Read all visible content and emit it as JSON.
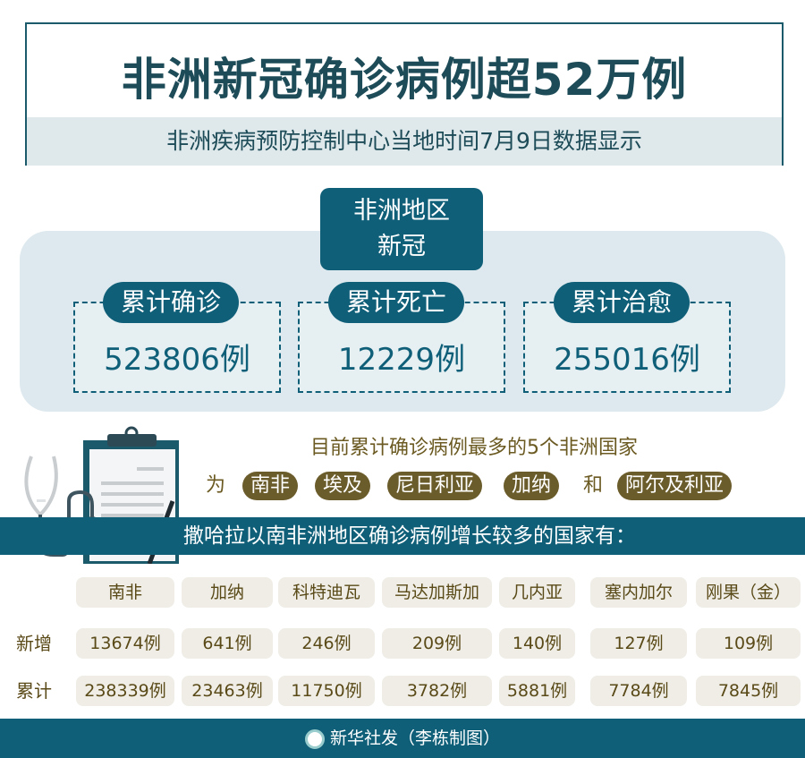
{
  "header": {
    "title": "非洲新冠确诊病例超52万例",
    "subtitle": "非洲疾病预防控制中心当地时间7月9日数据显示"
  },
  "region_box": {
    "line1": "非洲地区",
    "line2": "新冠"
  },
  "stats": [
    {
      "label": "累计确诊",
      "value": "523806例"
    },
    {
      "label": "累计死亡",
      "value": "12229例"
    },
    {
      "label": "累计治愈",
      "value": "255016例"
    }
  ],
  "top5": {
    "intro": "目前累计确诊病例最多的5个非洲国家",
    "prefix": "为",
    "countries": [
      "南非",
      "埃及",
      "尼日利亚",
      "加纳",
      "阿尔及利亚"
    ],
    "conjunction": "和"
  },
  "banner": "撒哈拉以南非洲地区确诊病例增长较多的国家有：",
  "table": {
    "columns": [
      "南非",
      "加纳",
      "科特迪瓦",
      "马达加斯加",
      "几内亚",
      "塞内加尔",
      "刚果（金）"
    ],
    "rows": [
      {
        "label": "新增",
        "values": [
          "13674例",
          "641例",
          "246例",
          "209例",
          "140例",
          "127例",
          "109例"
        ]
      },
      {
        "label": "累计",
        "values": [
          "238339例",
          "23463例",
          "11750例",
          "3782例",
          "5881例",
          "7784例",
          "7845例"
        ]
      }
    ]
  },
  "footer": "新华社发（李栋制图）",
  "colors": {
    "teal": "#0f5f79",
    "olive": "#6b5c2b",
    "panel": "#dde9ee"
  }
}
